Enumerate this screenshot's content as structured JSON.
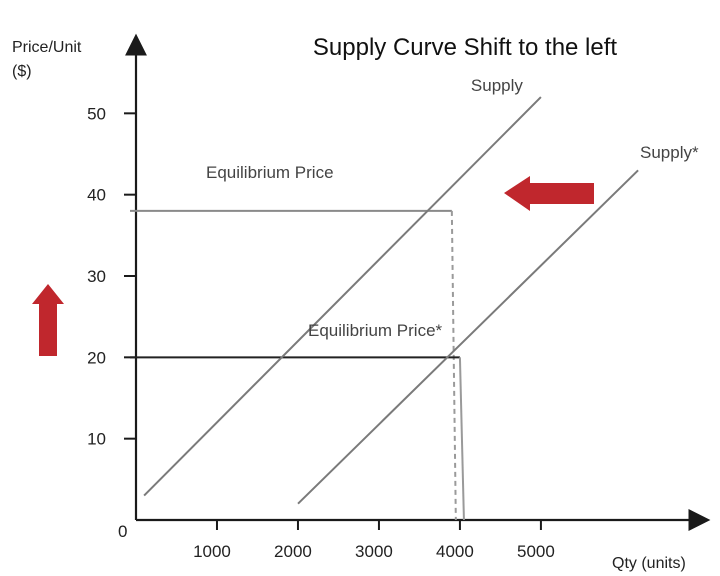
{
  "chart_data": {
    "type": "line",
    "title": "Supply Curve Shift to the left",
    "ylabel_line1": "Price/Unit",
    "ylabel_line2": "($)",
    "xlabel": "Qty (units)",
    "origin_label": "0",
    "xlim": [
      0,
      6100
    ],
    "ylim": [
      0,
      60
    ],
    "x_ticks": [
      1000,
      2000,
      3000,
      4000,
      5000
    ],
    "x_tick_labels": [
      "1000",
      "2000",
      "3000",
      "4000",
      "5000"
    ],
    "y_ticks": [
      10,
      20,
      30,
      40,
      50
    ],
    "y_tick_labels": [
      "10",
      "20",
      "30",
      "40",
      "50"
    ],
    "grid": false,
    "series": [
      {
        "name": "Supply",
        "x": [
          100,
          5000
        ],
        "y": [
          3,
          52
        ]
      },
      {
        "name": "Supply*",
        "x": [
          2000,
          6200
        ],
        "y": [
          2,
          43
        ]
      }
    ],
    "equilibria": [
      {
        "label": "Equilibrium Price",
        "x": 3900,
        "y": 38,
        "vertical_style": "dashed"
      },
      {
        "label": "Equilibrium Price*",
        "x": 4000,
        "y": 20,
        "vertical_style": "solid"
      }
    ],
    "arrows": [
      {
        "meaning": "price-up-arrow",
        "direction": "up",
        "color": "#c0272d"
      },
      {
        "meaning": "shift-left-arrow",
        "direction": "left",
        "color": "#c0272d"
      }
    ],
    "colors": {
      "axis": "#1a1a1a",
      "supply_line": "#7a7a7a",
      "equilibrium_line": "#8a8a8a",
      "equilibrium_line_star": "#222222",
      "arrow": "#c0272d"
    }
  }
}
